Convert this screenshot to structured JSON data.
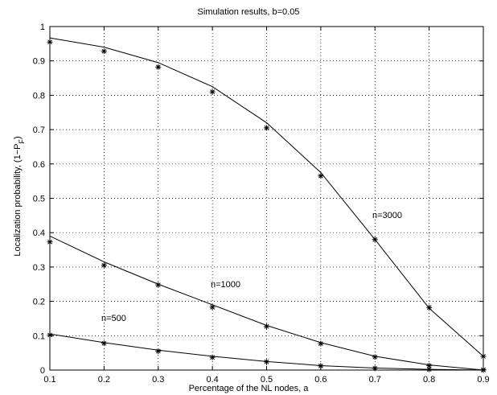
{
  "chart_data": {
    "type": "line",
    "title": "Simulation results, b=0.05",
    "xlabel": "Percentage of the NL nodes, a",
    "ylabel_main": "Localization probability, (1−P",
    "ylabel_sub": "F",
    "ylabel_close": ")",
    "xlim": [
      0.1,
      0.9
    ],
    "ylim": [
      0,
      1
    ],
    "xticks": [
      "0.1",
      "0.2",
      "0.3",
      "0.4",
      "0.5",
      "0.6",
      "0.7",
      "0.8",
      "0.9"
    ],
    "yticks": [
      "0",
      "0.1",
      "0.2",
      "0.3",
      "0.4",
      "0.5",
      "0.6",
      "0.7",
      "0.8",
      "0.9",
      "1"
    ],
    "grid": true,
    "x": [
      0.1,
      0.2,
      0.3,
      0.4,
      0.5,
      0.6,
      0.7,
      0.8,
      0.9
    ],
    "series": [
      {
        "name": "n=3000",
        "line": [
          0.967,
          0.94,
          0.895,
          0.825,
          0.72,
          0.575,
          0.38,
          0.18,
          0.04
        ],
        "markers": [
          0.955,
          0.928,
          0.882,
          0.81,
          0.705,
          0.565,
          0.38,
          0.182,
          0.04
        ]
      },
      {
        "name": "n=1000",
        "line": [
          0.39,
          0.315,
          0.25,
          0.19,
          0.13,
          0.08,
          0.04,
          0.015,
          0.0
        ],
        "markers": [
          0.373,
          0.305,
          0.248,
          0.183,
          0.127,
          0.077,
          0.038,
          0.013,
          0.001
        ]
      },
      {
        "name": "n=500",
        "line": [
          0.105,
          0.08,
          0.058,
          0.04,
          0.025,
          0.013,
          0.006,
          0.002,
          0.0
        ],
        "markers": [
          0.102,
          0.078,
          0.055,
          0.037,
          0.024,
          0.012,
          0.005,
          0.002,
          0.0
        ]
      }
    ],
    "annotations": [
      "n=3000",
      "n=1000",
      "n=500"
    ]
  }
}
